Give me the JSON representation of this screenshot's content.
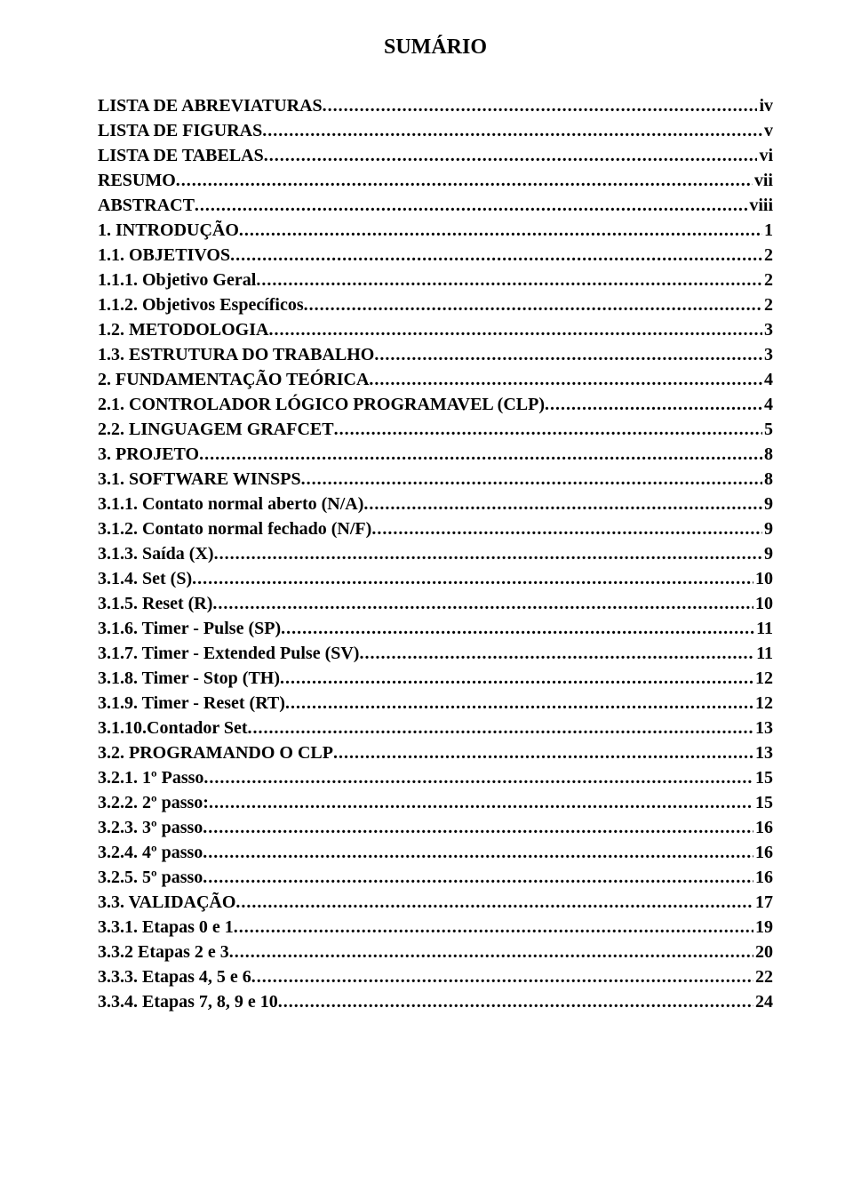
{
  "doc_title": "SUMÁRIO",
  "entries": [
    {
      "label": "LISTA DE ABREVIATURAS",
      "page": "iv"
    },
    {
      "label": "LISTA DE FIGURAS",
      "page": "v"
    },
    {
      "label": "LISTA DE TABELAS",
      "page": "vi"
    },
    {
      "label": "RESUMO",
      "page": "vii"
    },
    {
      "label": "ABSTRACT",
      "page": "viii"
    },
    {
      "label": "1. INTRODUÇÃO",
      "page": "1"
    },
    {
      "label": "1.1. OBJETIVOS",
      "page": "2"
    },
    {
      "label": "1.1.1. Objetivo Geral",
      "page": "2"
    },
    {
      "label": "1.1.2. Objetivos Específicos",
      "page": "2"
    },
    {
      "label": "1.2. METODOLOGIA",
      "page": "3"
    },
    {
      "label": "1.3. ESTRUTURA DO TRABALHO",
      "page": "3"
    },
    {
      "label": "2. FUNDAMENTAÇÃO TEÓRICA",
      "page": "4"
    },
    {
      "label": "2.1. CONTROLADOR LÓGICO PROGRAMAVEL (CLP)",
      "page": "4"
    },
    {
      "label": "2.2. LINGUAGEM GRAFCET",
      "page": "5"
    },
    {
      "label": "3. PROJETO",
      "page": "8"
    },
    {
      "label": "3.1. SOFTWARE WINSPS",
      "page": "8"
    },
    {
      "label": "3.1.1. Contato normal aberto (N/A)",
      "page": "9"
    },
    {
      "label": "3.1.2. Contato normal fechado (N/F)",
      "page": "9"
    },
    {
      "label": "3.1.3. Saída (X)",
      "page": "9"
    },
    {
      "label": "3.1.4. Set (S)",
      "page": "10"
    },
    {
      "label": "3.1.5. Reset (R)",
      "page": "10"
    },
    {
      "label": "3.1.6. Timer - Pulse (SP)",
      "page": "11"
    },
    {
      "label": "3.1.7. Timer - Extended Pulse (SV)",
      "page": "11"
    },
    {
      "label": "3.1.8. Timer - Stop (TH)",
      "page": "12"
    },
    {
      "label": "3.1.9. Timer - Reset (RT)",
      "page": "12"
    },
    {
      "label": "3.1.10.Contador Set",
      "page": "13"
    },
    {
      "label": "3.2. PROGRAMANDO O CLP",
      "page": "13"
    },
    {
      "label": "3.2.1. 1º Passo",
      "page": "15"
    },
    {
      "label": "3.2.2. 2º passo:",
      "page": "15"
    },
    {
      "label": "3.2.3. 3º passo",
      "page": "16"
    },
    {
      "label": "3.2.4. 4º passo",
      "page": "16"
    },
    {
      "label": "3.2.5. 5º passo",
      "page": "16"
    },
    {
      "label": "3.3. VALIDAÇÃO",
      "page": "17"
    },
    {
      "label": "3.3.1. Etapas 0 e 1",
      "page": "19"
    },
    {
      "label": "3.3.2  Etapas 2 e 3",
      "page": "20"
    },
    {
      "label": "3.3.3. Etapas 4, 5 e 6",
      "page": "22"
    },
    {
      "label": "3.3.4. Etapas 7, 8, 9 e 10",
      "page": "24"
    }
  ]
}
